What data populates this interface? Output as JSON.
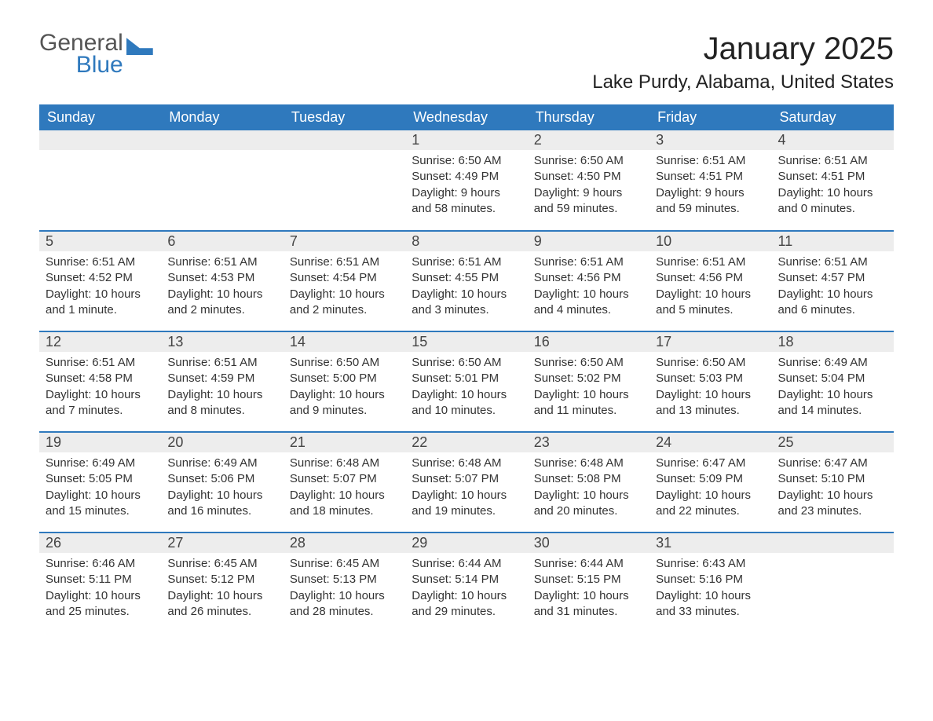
{
  "logo": {
    "line1": "General",
    "line2": "Blue"
  },
  "title": "January 2025",
  "location": "Lake Purdy, Alabama, United States",
  "colors": {
    "header_bg": "#2f79bd",
    "header_text": "#ffffff",
    "daynum_bg": "#ededed",
    "row_divider": "#2f79bd",
    "body_text": "#333333",
    "page_bg": "#ffffff"
  },
  "weekdays": [
    "Sunday",
    "Monday",
    "Tuesday",
    "Wednesday",
    "Thursday",
    "Friday",
    "Saturday"
  ],
  "weeks": [
    [
      null,
      null,
      null,
      {
        "n": "1",
        "sunrise": "6:50 AM",
        "sunset": "4:49 PM",
        "daylight": "9 hours and 58 minutes."
      },
      {
        "n": "2",
        "sunrise": "6:50 AM",
        "sunset": "4:50 PM",
        "daylight": "9 hours and 59 minutes."
      },
      {
        "n": "3",
        "sunrise": "6:51 AM",
        "sunset": "4:51 PM",
        "daylight": "9 hours and 59 minutes."
      },
      {
        "n": "4",
        "sunrise": "6:51 AM",
        "sunset": "4:51 PM",
        "daylight": "10 hours and 0 minutes."
      }
    ],
    [
      {
        "n": "5",
        "sunrise": "6:51 AM",
        "sunset": "4:52 PM",
        "daylight": "10 hours and 1 minute."
      },
      {
        "n": "6",
        "sunrise": "6:51 AM",
        "sunset": "4:53 PM",
        "daylight": "10 hours and 2 minutes."
      },
      {
        "n": "7",
        "sunrise": "6:51 AM",
        "sunset": "4:54 PM",
        "daylight": "10 hours and 2 minutes."
      },
      {
        "n": "8",
        "sunrise": "6:51 AM",
        "sunset": "4:55 PM",
        "daylight": "10 hours and 3 minutes."
      },
      {
        "n": "9",
        "sunrise": "6:51 AM",
        "sunset": "4:56 PM",
        "daylight": "10 hours and 4 minutes."
      },
      {
        "n": "10",
        "sunrise": "6:51 AM",
        "sunset": "4:56 PM",
        "daylight": "10 hours and 5 minutes."
      },
      {
        "n": "11",
        "sunrise": "6:51 AM",
        "sunset": "4:57 PM",
        "daylight": "10 hours and 6 minutes."
      }
    ],
    [
      {
        "n": "12",
        "sunrise": "6:51 AM",
        "sunset": "4:58 PM",
        "daylight": "10 hours and 7 minutes."
      },
      {
        "n": "13",
        "sunrise": "6:51 AM",
        "sunset": "4:59 PM",
        "daylight": "10 hours and 8 minutes."
      },
      {
        "n": "14",
        "sunrise": "6:50 AM",
        "sunset": "5:00 PM",
        "daylight": "10 hours and 9 minutes."
      },
      {
        "n": "15",
        "sunrise": "6:50 AM",
        "sunset": "5:01 PM",
        "daylight": "10 hours and 10 minutes."
      },
      {
        "n": "16",
        "sunrise": "6:50 AM",
        "sunset": "5:02 PM",
        "daylight": "10 hours and 11 minutes."
      },
      {
        "n": "17",
        "sunrise": "6:50 AM",
        "sunset": "5:03 PM",
        "daylight": "10 hours and 13 minutes."
      },
      {
        "n": "18",
        "sunrise": "6:49 AM",
        "sunset": "5:04 PM",
        "daylight": "10 hours and 14 minutes."
      }
    ],
    [
      {
        "n": "19",
        "sunrise": "6:49 AM",
        "sunset": "5:05 PM",
        "daylight": "10 hours and 15 minutes."
      },
      {
        "n": "20",
        "sunrise": "6:49 AM",
        "sunset": "5:06 PM",
        "daylight": "10 hours and 16 minutes."
      },
      {
        "n": "21",
        "sunrise": "6:48 AM",
        "sunset": "5:07 PM",
        "daylight": "10 hours and 18 minutes."
      },
      {
        "n": "22",
        "sunrise": "6:48 AM",
        "sunset": "5:07 PM",
        "daylight": "10 hours and 19 minutes."
      },
      {
        "n": "23",
        "sunrise": "6:48 AM",
        "sunset": "5:08 PM",
        "daylight": "10 hours and 20 minutes."
      },
      {
        "n": "24",
        "sunrise": "6:47 AM",
        "sunset": "5:09 PM",
        "daylight": "10 hours and 22 minutes."
      },
      {
        "n": "25",
        "sunrise": "6:47 AM",
        "sunset": "5:10 PM",
        "daylight": "10 hours and 23 minutes."
      }
    ],
    [
      {
        "n": "26",
        "sunrise": "6:46 AM",
        "sunset": "5:11 PM",
        "daylight": "10 hours and 25 minutes."
      },
      {
        "n": "27",
        "sunrise": "6:45 AM",
        "sunset": "5:12 PM",
        "daylight": "10 hours and 26 minutes."
      },
      {
        "n": "28",
        "sunrise": "6:45 AM",
        "sunset": "5:13 PM",
        "daylight": "10 hours and 28 minutes."
      },
      {
        "n": "29",
        "sunrise": "6:44 AM",
        "sunset": "5:14 PM",
        "daylight": "10 hours and 29 minutes."
      },
      {
        "n": "30",
        "sunrise": "6:44 AM",
        "sunset": "5:15 PM",
        "daylight": "10 hours and 31 minutes."
      },
      {
        "n": "31",
        "sunrise": "6:43 AM",
        "sunset": "5:16 PM",
        "daylight": "10 hours and 33 minutes."
      },
      null
    ]
  ],
  "labels": {
    "sunrise": "Sunrise: ",
    "sunset": "Sunset: ",
    "daylight": "Daylight: "
  }
}
